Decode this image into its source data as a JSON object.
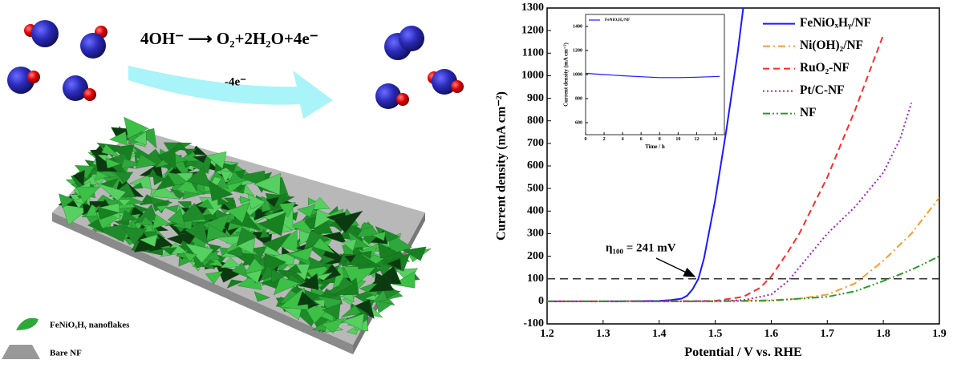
{
  "illustration": {
    "reaction": "4OH⁻ ⟶ O₂+2H₂O+4e⁻",
    "electrons": "-4e⁻",
    "legend": [
      "FeNiOₓHᵧ nanoflakes",
      "Bare NF"
    ]
  },
  "chart_data": [
    {
      "type": "line",
      "xlabel": "Potential / V vs. RHE",
      "ylabel": "Current density (mA cm⁻²)",
      "xlim": [
        1.2,
        1.9
      ],
      "xticks": [
        1.2,
        1.3,
        1.4,
        1.5,
        1.6,
        1.7,
        1.8,
        1.9
      ],
      "ylim": [
        -100,
        1300
      ],
      "yticks": [
        -100,
        0,
        100,
        200,
        300,
        400,
        500,
        600,
        700,
        800,
        900,
        1000,
        1100,
        1200,
        1300
      ],
      "legend": "upper right",
      "hline": 100,
      "annotation": "η₁₀₀ = 241 mV",
      "series": [
        {
          "name": "FeNiOₓHᵧ/NF",
          "color": "#1a1aff",
          "linestyle": "solid",
          "x": [
            1.2,
            1.3,
            1.4,
            1.42,
            1.44,
            1.45,
            1.46,
            1.47,
            1.48,
            1.5,
            1.52,
            1.54,
            1.55
          ],
          "values": [
            0,
            0,
            2,
            5,
            12,
            25,
            55,
            100,
            190,
            450,
            760,
            1100,
            1300
          ]
        },
        {
          "name": "Ni(OH)₂/NF",
          "color": "#ff9a2e",
          "linestyle": "dashdot",
          "x": [
            1.2,
            1.4,
            1.5,
            1.6,
            1.65,
            1.7,
            1.75,
            1.8,
            1.85,
            1.9
          ],
          "values": [
            0,
            0,
            1,
            5,
            12,
            30,
            80,
            180,
            300,
            460
          ]
        },
        {
          "name": "RuO₂-NF",
          "color": "#ff2a2a",
          "linestyle": "dashed",
          "x": [
            1.2,
            1.4,
            1.5,
            1.55,
            1.58,
            1.6,
            1.63,
            1.65,
            1.7,
            1.75,
            1.78,
            1.8
          ],
          "values": [
            0,
            0,
            2,
            20,
            60,
            110,
            220,
            300,
            550,
            850,
            1050,
            1180
          ]
        },
        {
          "name": "Pt/C-NF",
          "color": "#a020c8",
          "linestyle": "dotted",
          "x": [
            1.2,
            1.4,
            1.5,
            1.55,
            1.6,
            1.63,
            1.65,
            1.7,
            1.75,
            1.8,
            1.83,
            1.85
          ],
          "values": [
            0,
            0,
            1,
            5,
            30,
            90,
            150,
            300,
            420,
            570,
            720,
            880
          ]
        },
        {
          "name": "NF",
          "color": "#2a9a2a",
          "linestyle": "dashdotdot",
          "x": [
            1.2,
            1.5,
            1.6,
            1.7,
            1.75,
            1.8,
            1.85,
            1.9
          ],
          "values": [
            0,
            0,
            3,
            20,
            45,
            90,
            140,
            200
          ]
        }
      ]
    },
    {
      "type": "line",
      "xlabel": "Time / h",
      "ylabel": "Current density (mA cm⁻²)",
      "xlim": [
        0,
        15
      ],
      "xticks": [
        0,
        2,
        4,
        6,
        8,
        10,
        12,
        14
      ],
      "ylim": [
        500,
        1500
      ],
      "yticks": [
        600,
        800,
        1000,
        1200,
        1400
      ],
      "legend": "upper left",
      "series": [
        {
          "name": "FeNiOₓHᵧ/NF",
          "color": "#1a1aff",
          "linestyle": "solid",
          "x": [
            0,
            2,
            4,
            6,
            8,
            10,
            12,
            14.5
          ],
          "values": [
            1010,
            1000,
            990,
            982,
            975,
            975,
            978,
            985
          ]
        }
      ]
    }
  ]
}
